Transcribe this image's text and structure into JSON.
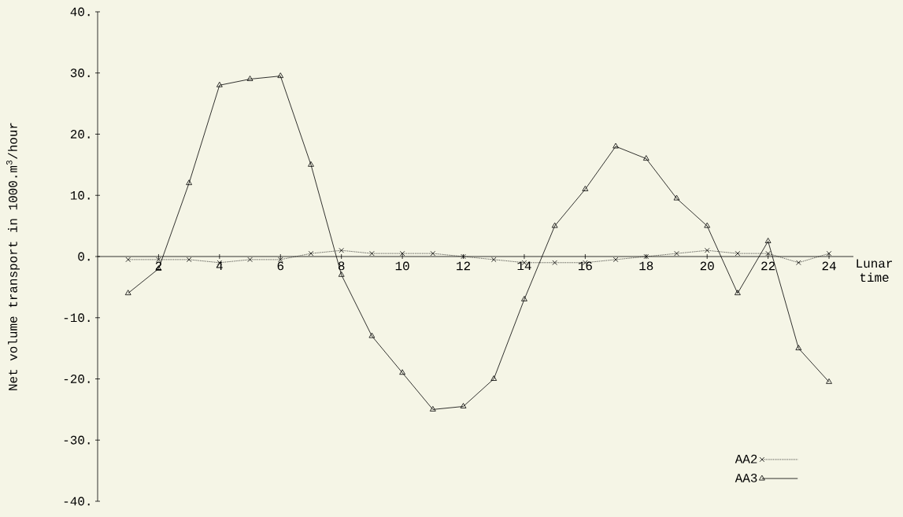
{
  "chart_data": {
    "type": "line",
    "xlabel": "Lunar time",
    "ylabel": "Net volume transport in 1000.m$^{3}$/hour",
    "x": [
      1,
      2,
      3,
      4,
      5,
      6,
      7,
      8,
      9,
      10,
      11,
      12,
      13,
      14,
      15,
      16,
      17,
      18,
      19,
      20,
      21,
      22,
      23,
      24
    ],
    "series": [
      {
        "name": "AA2",
        "color": "#000000",
        "marker": "cross",
        "line_style": "dotted",
        "values": [
          -0.5,
          -0.5,
          -0.5,
          -1,
          -0.5,
          -0.5,
          0.5,
          1,
          0.5,
          0.5,
          0.5,
          0,
          -0.5,
          -1,
          -1,
          -1,
          -0.5,
          0,
          0.5,
          1,
          0.5,
          0.5,
          -1,
          0.5
        ]
      },
      {
        "name": "AA3",
        "color": "#000000",
        "marker": "triangle",
        "line_style": "solid",
        "values": [
          -6,
          -2,
          12,
          28,
          29,
          29.5,
          15,
          -3,
          -13,
          -19,
          -25,
          -24.5,
          -20,
          -7,
          5,
          11,
          18,
          16,
          9.5,
          5,
          -6,
          2.5,
          -15,
          -20.5
        ]
      }
    ],
    "xlim": [
      0,
      24.8
    ],
    "ylim": [
      -40,
      40
    ],
    "xticks": [
      2,
      4,
      6,
      8,
      10,
      12,
      14,
      16,
      18,
      20,
      22,
      24
    ],
    "yticks": [
      {
        "value": -40,
        "label": "-40."
      },
      {
        "value": -30,
        "label": "-30."
      },
      {
        "value": -20,
        "label": "-20."
      },
      {
        "value": -10,
        "label": "-10."
      },
      {
        "value": 0,
        "label": "0."
      },
      {
        "value": 10,
        "label": "10."
      },
      {
        "value": 20,
        "label": "20."
      },
      {
        "value": 30,
        "label": "30."
      },
      {
        "value": 40,
        "label": "40."
      }
    ],
    "legend": "bottom right"
  }
}
